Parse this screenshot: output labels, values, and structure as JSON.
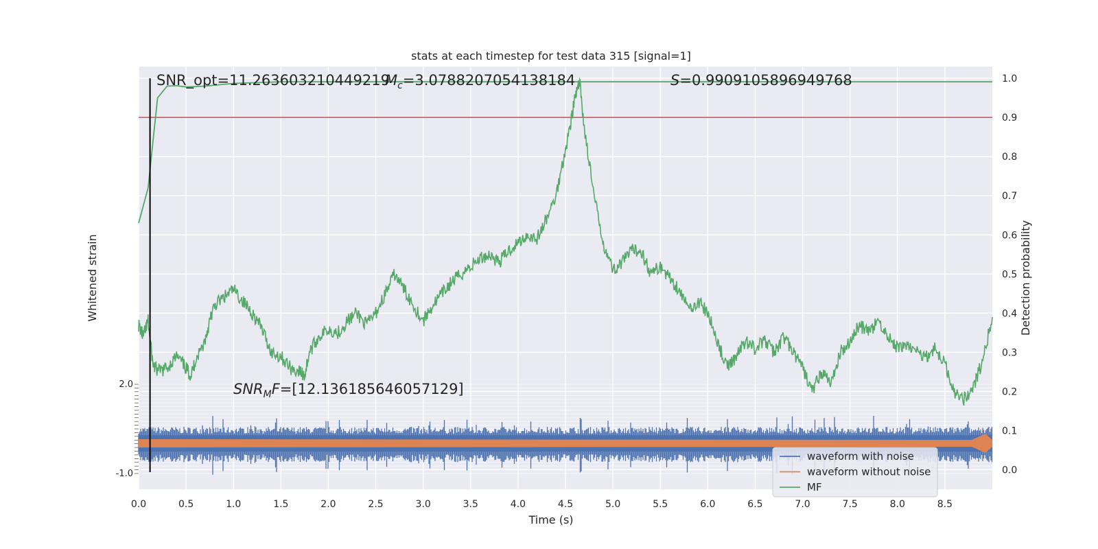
{
  "chart_data": {
    "type": "line",
    "title": "stats at each timestep for test data 315 [signal=1]",
    "xlabel": "Time (s)",
    "ylabel_left": "Whitened strain",
    "ylabel_right": "Detection probability",
    "xlim": [
      0,
      9.0
    ],
    "x_ticks": [
      "0.0",
      "0.5",
      "1.0",
      "1.5",
      "2.0",
      "2.5",
      "3.0",
      "3.5",
      "4.0",
      "4.5",
      "5.0",
      "5.5",
      "6.0",
      "6.5",
      "7.0",
      "7.5",
      "8.0",
      "8.5"
    ],
    "right_ylim": [
      -0.05,
      1.03
    ],
    "right_ticks": [
      "0.0",
      "0.1",
      "0.2",
      "0.3",
      "0.4",
      "0.5",
      "0.6",
      "0.7",
      "0.8",
      "0.9",
      "1.0"
    ],
    "left_ticks_top": "2.0",
    "left_ticks_bottom": "-1.0",
    "grid": true,
    "legend_placement": "lower-right",
    "annotations": {
      "snr_opt": "SNR_opt=11.263603210449219",
      "mc_symbol": "M",
      "mc_sub": "c",
      "mc_value": "=3.0788207054138184",
      "s_symbol": "S",
      "s_value": "=0.9909105896949768",
      "snr_mf_symbol": "SNR",
      "snr_mf_sub": "M",
      "snr_mf_tail": "F",
      "snr_mf_value": "=[12.136185646057129]"
    },
    "threshold": 0.9,
    "marker_time": 0.12,
    "series": [
      {
        "name": "MF",
        "color": "#55a868",
        "x": [
          0.0,
          0.1,
          0.2,
          0.3,
          0.4,
          0.5,
          0.7,
          1.0,
          1.5,
          2.0,
          3.0,
          9.0
        ],
        "values": [
          0.63,
          0.72,
          0.95,
          0.98,
          0.981,
          0.978,
          0.98,
          0.987,
          0.991,
          0.991,
          0.991,
          0.991
        ]
      },
      {
        "name": "detection_curve",
        "color": "#55a868",
        "x": [
          0.0,
          0.05,
          0.1,
          0.15,
          0.2,
          0.3,
          0.4,
          0.5,
          0.55,
          0.6,
          0.7,
          0.75,
          0.8,
          0.9,
          1.0,
          1.1,
          1.2,
          1.3,
          1.4,
          1.5,
          1.6,
          1.7,
          1.75,
          1.8,
          1.9,
          2.0,
          2.1,
          2.2,
          2.3,
          2.4,
          2.5,
          2.6,
          2.7,
          2.8,
          2.9,
          3.0,
          3.1,
          3.2,
          3.3,
          3.4,
          3.5,
          3.6,
          3.7,
          3.8,
          3.9,
          4.0,
          4.1,
          4.2,
          4.3,
          4.4,
          4.5,
          4.55,
          4.6,
          4.65,
          4.7,
          4.8,
          4.9,
          5.0,
          5.1,
          5.2,
          5.3,
          5.4,
          5.5,
          5.6,
          5.7,
          5.8,
          5.9,
          6.0,
          6.1,
          6.2,
          6.3,
          6.4,
          6.5,
          6.6,
          6.7,
          6.8,
          6.9,
          7.0,
          7.1,
          7.2,
          7.3,
          7.4,
          7.5,
          7.6,
          7.7,
          7.8,
          7.9,
          8.0,
          8.1,
          8.2,
          8.3,
          8.4,
          8.5,
          8.6,
          8.7,
          8.8,
          8.9,
          9.0
        ],
        "values": [
          0.37,
          0.34,
          0.38,
          0.27,
          0.25,
          0.26,
          0.29,
          0.26,
          0.24,
          0.28,
          0.33,
          0.38,
          0.42,
          0.44,
          0.46,
          0.43,
          0.4,
          0.36,
          0.3,
          0.29,
          0.26,
          0.25,
          0.24,
          0.3,
          0.34,
          0.36,
          0.35,
          0.38,
          0.4,
          0.37,
          0.4,
          0.45,
          0.5,
          0.46,
          0.42,
          0.38,
          0.42,
          0.45,
          0.48,
          0.5,
          0.52,
          0.54,
          0.55,
          0.53,
          0.56,
          0.58,
          0.6,
          0.59,
          0.64,
          0.7,
          0.82,
          0.88,
          0.95,
          0.99,
          0.87,
          0.7,
          0.58,
          0.51,
          0.53,
          0.56,
          0.56,
          0.5,
          0.52,
          0.49,
          0.46,
          0.41,
          0.43,
          0.4,
          0.33,
          0.26,
          0.29,
          0.33,
          0.31,
          0.33,
          0.3,
          0.34,
          0.3,
          0.26,
          0.2,
          0.25,
          0.22,
          0.3,
          0.33,
          0.37,
          0.35,
          0.38,
          0.34,
          0.31,
          0.32,
          0.3,
          0.29,
          0.31,
          0.27,
          0.2,
          0.18,
          0.21,
          0.28,
          0.39
        ]
      },
      {
        "name": "waveform with noise",
        "color": "#4c72b0",
        "x": [
          0.0,
          9.0
        ],
        "values": [
          0.0,
          0.0
        ]
      },
      {
        "name": "waveform without noise",
        "color": "#dd8452",
        "x": [
          0.0,
          9.0
        ],
        "values": [
          0.0,
          0.0
        ]
      }
    ],
    "legend": [
      "waveform with noise",
      "waveform without noise",
      "MF"
    ],
    "colors": {
      "background": "#eaeaf2",
      "grid": "#ffffff",
      "threshold": "#c44e52",
      "marker": "#000000"
    }
  }
}
